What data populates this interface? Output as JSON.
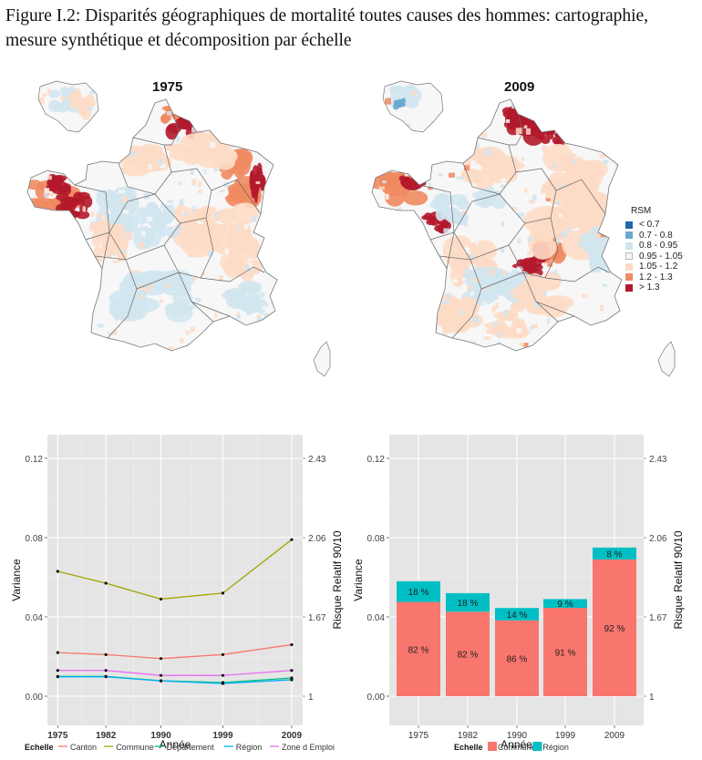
{
  "caption": "Figure I.2: Disparités géographiques de mortalité toutes causes des hommes: cartographie, mesure synthétique et décomposition par échelle",
  "maps": [
    {
      "title": "1975"
    },
    {
      "title": "2009"
    }
  ],
  "map_legend": {
    "title": "RSM",
    "items": [
      {
        "label": "< 0.7",
        "color": "#2166ac"
      },
      {
        "label": "0.7 - 0.8",
        "color": "#67a9cf"
      },
      {
        "label": "0.8 - 0.95",
        "color": "#d1e5f0"
      },
      {
        "label": "0.95 - 1.05",
        "color": "#f7f7f7"
      },
      {
        "label": "1.05 - 1.2",
        "color": "#fddbc7"
      },
      {
        "label": "1.2 - 1.3",
        "color": "#ef8a62"
      },
      {
        "label": "> 1.3",
        "color": "#b2182b"
      }
    ]
  },
  "chart_data": [
    {
      "type": "line",
      "title": "",
      "xlabel": "Année",
      "ylabel": "Variance",
      "y2label": "Risque Relatif 90/10",
      "x": [
        "1975",
        "1982",
        "1990",
        "1999",
        "2009"
      ],
      "x_numeric": [
        1975,
        1982,
        1990,
        1999,
        2009
      ],
      "ylim": [
        -0.005,
        0.13
      ],
      "yticks": [
        "0.00",
        "0.04",
        "0.08",
        "0.12"
      ],
      "ytick_values": [
        0,
        0.04,
        0.08,
        0.12
      ],
      "y2ticks": [
        "1",
        "1.67",
        "2.06",
        "2.43"
      ],
      "grid": true,
      "legend_title": "Echelle",
      "legend_position": "bottom",
      "series": [
        {
          "name": "Canton",
          "color": "#f8766d",
          "values": [
            0.022,
            0.021,
            0.019,
            0.021,
            0.026
          ]
        },
        {
          "name": "Commune",
          "color": "#a3a500",
          "values": [
            0.063,
            0.057,
            0.049,
            0.052,
            0.079
          ]
        },
        {
          "name": "Département",
          "color": "#00bf7d",
          "values": [
            0.01,
            0.01,
            0.0078,
            0.0069,
            0.0092
          ]
        },
        {
          "name": "Région",
          "color": "#00b0f6",
          "values": [
            0.0098,
            0.0098,
            0.0077,
            0.0064,
            0.0083
          ]
        },
        {
          "name": "Zone d Emploi",
          "color": "#e76bf3",
          "values": [
            0.013,
            0.013,
            0.0105,
            0.0105,
            0.013
          ]
        }
      ]
    },
    {
      "type": "bar",
      "stacked": true,
      "title": "",
      "xlabel": "Année",
      "ylabel": "Variance",
      "y2label": "Risque Relatif 90/10",
      "categories": [
        "1975",
        "1982",
        "1990",
        "1999",
        "2009"
      ],
      "ylim": [
        -0.005,
        0.13
      ],
      "yticks": [
        "0.00",
        "0.04",
        "0.08",
        "0.12"
      ],
      "ytick_values": [
        0,
        0.04,
        0.08,
        0.12
      ],
      "y2ticks": [
        "1",
        "1.67",
        "2.06",
        "2.43"
      ],
      "grid": true,
      "legend_title": "Echelle",
      "legend_position": "bottom",
      "totals": [
        0.058,
        0.052,
        0.0445,
        0.049,
        0.075
      ],
      "series": [
        {
          "name": "Commune",
          "color": "#f8766d",
          "share_labels": [
            "82 %",
            "82 %",
            "86 %",
            "91 %",
            "92 %"
          ],
          "shares": [
            0.82,
            0.82,
            0.86,
            0.91,
            0.92
          ]
        },
        {
          "name": "Région",
          "color": "#00bfc4",
          "share_labels": [
            "18 %",
            "18 %",
            "14 %",
            "9 %",
            "8 %"
          ],
          "shares": [
            0.18,
            0.18,
            0.14,
            0.09,
            0.08
          ]
        }
      ]
    }
  ]
}
